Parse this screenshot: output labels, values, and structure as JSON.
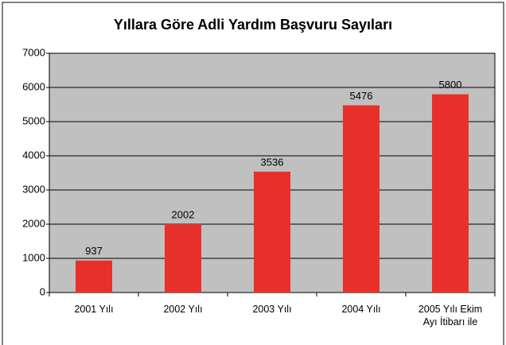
{
  "chart_data": {
    "type": "bar",
    "title": "Yıllara Göre Adli Yardım Başvuru Sayıları",
    "categories": [
      "2001 Yılı",
      "2002 Yılı",
      "2003 Yılı",
      "2004 Yılı",
      "2005 Yılı Ekim Ayı İtibarı ile"
    ],
    "values": [
      937,
      2002,
      3536,
      5476,
      5800
    ],
    "color": "#e8302a",
    "ylim": [
      0,
      7000
    ],
    "yticks": [
      0,
      1000,
      2000,
      3000,
      4000,
      5000,
      6000,
      7000
    ],
    "grid": true
  }
}
